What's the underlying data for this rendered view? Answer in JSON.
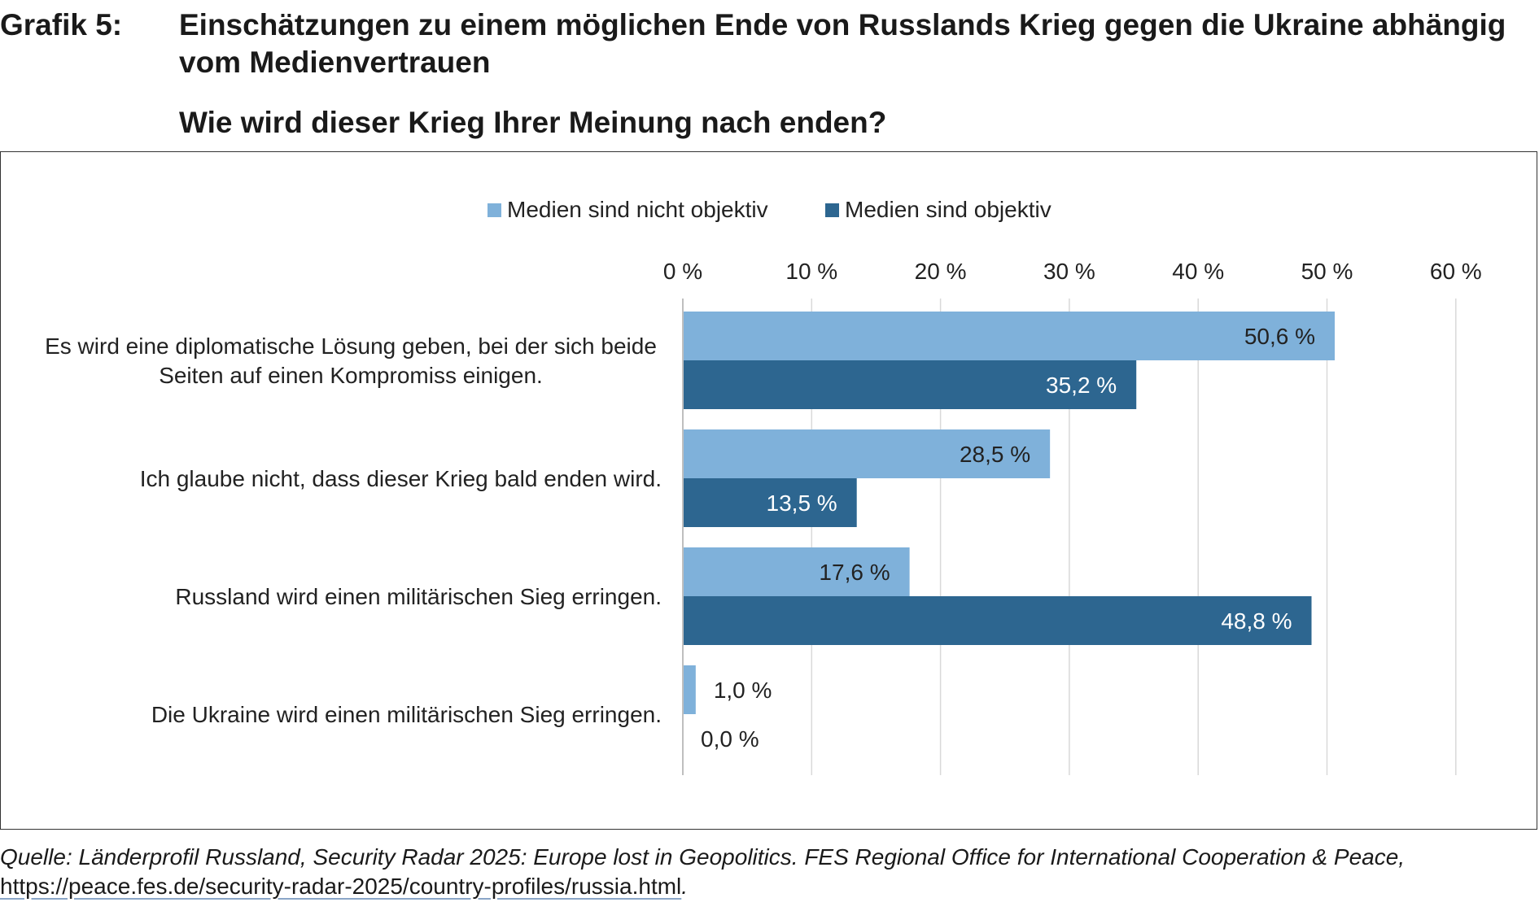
{
  "header": {
    "grafik_label": "Grafik 5:",
    "title": "Einschätzungen zu einem möglichen Ende von Russlands Krieg gegen die Ukraine abhängig vom Medienvertrauen",
    "subtitle": "Wie wird dieser Krieg Ihrer Meinung nach enden?"
  },
  "source": {
    "text": "Quelle: Länderprofil Russland, Security Radar 2025: Europe lost in Geopolitics. FES Regional Office for International Cooperation & Peace,",
    "url": "https://peace.fes.de/security-radar-2025/country-profiles/russia.html",
    "end": "."
  },
  "chart_data": {
    "type": "bar",
    "orientation": "horizontal",
    "categories": [
      [
        "Es wird eine diplomatische Lösung geben, bei der sich beide",
        "Seiten auf einen Kompromiss einigen."
      ],
      [
        "Ich glaube nicht, dass dieser Krieg bald enden wird."
      ],
      [
        "Russland wird einen militärischen Sieg erringen."
      ],
      [
        "Die Ukraine wird einen militärischen Sieg erringen."
      ]
    ],
    "series": [
      {
        "name": "Medien sind nicht objektiv",
        "color": "#7fb1da",
        "values": [
          50.6,
          28.5,
          17.6,
          1.0
        ],
        "labels": [
          "50,6 %",
          "28,5 %",
          "17,6 %",
          "1,0 %"
        ]
      },
      {
        "name": "Medien sind objektiv",
        "color": "#2d6690",
        "values": [
          35.2,
          13.5,
          48.8,
          0.0
        ],
        "labels": [
          "35,2 %",
          "13,5 %",
          "48,8 %",
          "0,0 %"
        ]
      }
    ],
    "xlim": [
      0,
      60
    ],
    "ticks": [
      0,
      10,
      20,
      30,
      40,
      50,
      60
    ],
    "tick_labels": [
      "0 %",
      "10 %",
      "20 %",
      "30 %",
      "40 %",
      "50 %",
      "60 %"
    ],
    "legend_position": "top",
    "grid": true
  }
}
